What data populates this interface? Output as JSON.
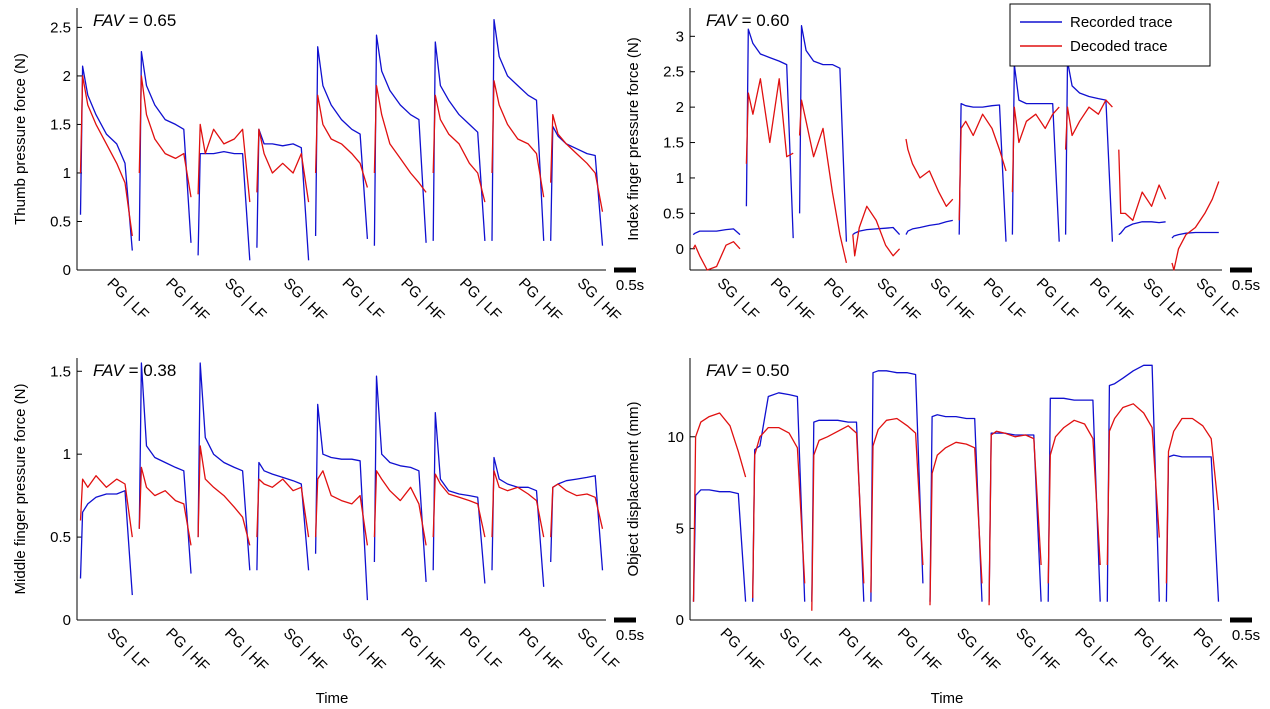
{
  "figure": {
    "xlabel": "Time",
    "scale_bar_label": "0.5s",
    "legend": {
      "placement": "top-right",
      "entries": [
        {
          "label": "Recorded trace",
          "color": "#1010d0"
        },
        {
          "label": "Decoded trace",
          "color": "#e01010"
        }
      ]
    }
  },
  "chart_data": [
    {
      "type": "line",
      "fav_label": "FAV",
      "fav_value": "= 0.65",
      "ylabel": "Thumb pressure force (N)",
      "ylim": [
        0,
        2.7
      ],
      "yticks": [
        0,
        0.5,
        1,
        1.5,
        2,
        2.5
      ],
      "yticklabels": [
        "0",
        "0.5",
        "1",
        "1.5",
        "2",
        "2.5"
      ],
      "trial_labels": [
        "PG | LF",
        "PG | HF",
        "SG | LF",
        "SG | HF",
        "PG | LF",
        "PG | HF",
        "PG | LF",
        "PG | HF",
        "SG | HF"
      ],
      "series": [
        {
          "name": "Recorded trace",
          "color": "#1010d0",
          "trials": [
            [
              0.57,
              2.1,
              1.8,
              1.6,
              1.4,
              1.3,
              1.1,
              0.2
            ],
            [
              0.3,
              2.25,
              1.9,
              1.7,
              1.55,
              1.5,
              1.45,
              0.28
            ],
            [
              0.15,
              1.2,
              1.2,
              1.2,
              1.22,
              1.2,
              1.2,
              0.1
            ],
            [
              0.23,
              1.45,
              1.3,
              1.3,
              1.28,
              1.3,
              1.26,
              0.1
            ],
            [
              0.35,
              2.3,
              1.9,
              1.7,
              1.55,
              1.45,
              1.4,
              0.32
            ],
            [
              0.25,
              2.42,
              2.05,
              1.85,
              1.7,
              1.6,
              1.55,
              0.28
            ],
            [
              0.3,
              2.35,
              1.9,
              1.75,
              1.6,
              1.5,
              1.42,
              0.3
            ],
            [
              0.3,
              2.58,
              2.2,
              2.0,
              1.9,
              1.8,
              1.75,
              0.3
            ],
            [
              0.3,
              1.48,
              1.38,
              1.3,
              1.25,
              1.2,
              1.18,
              0.25
            ]
          ]
        },
        {
          "name": "Decoded trace",
          "color": "#e01010",
          "trials": [
            [
              1.0,
              2.0,
              1.7,
              1.5,
              1.3,
              1.1,
              0.9,
              0.35
            ],
            [
              1.0,
              2.0,
              1.6,
              1.35,
              1.2,
              1.15,
              1.2,
              0.75
            ],
            [
              0.78,
              1.5,
              1.2,
              1.45,
              1.3,
              1.35,
              1.45,
              0.7
            ],
            [
              0.8,
              1.45,
              1.2,
              1.0,
              1.1,
              1.0,
              1.2,
              0.7
            ],
            [
              1.0,
              1.8,
              1.5,
              1.35,
              1.3,
              1.2,
              1.1,
              0.85
            ],
            [
              1.0,
              1.9,
              1.6,
              1.3,
              1.15,
              1.0,
              0.9,
              0.8
            ],
            [
              1.0,
              1.8,
              1.55,
              1.4,
              1.3,
              1.1,
              1.0,
              0.7
            ],
            [
              1.0,
              1.95,
              1.7,
              1.5,
              1.35,
              1.3,
              1.2,
              0.75
            ],
            [
              0.9,
              1.6,
              1.4,
              1.3,
              1.2,
              1.1,
              1.0,
              0.6
            ]
          ]
        }
      ]
    },
    {
      "type": "line",
      "fav_label": "FAV",
      "fav_value": "= 0.60",
      "ylabel": "Index finger pressure force (N)",
      "ylim": [
        -0.3,
        3.4
      ],
      "yticks": [
        0,
        0.5,
        1,
        1.5,
        2,
        2.5,
        3
      ],
      "yticklabels": [
        "0",
        "0.5",
        "1",
        "1.5",
        "2",
        "2.5",
        "3"
      ],
      "trial_labels": [
        "SG | LF",
        "PG | HF",
        "PG | HF",
        "SG | HF",
        "SG | HF",
        "PG | LF",
        "PG | LF",
        "PG | HF",
        "SG | LF",
        "SG | LF"
      ],
      "series": [
        {
          "name": "Recorded trace",
          "color": "#1010d0",
          "trials": [
            [
              0.2,
              0.22,
              0.25,
              0.25,
              0.25,
              0.27,
              0.28,
              0.2
            ],
            [
              0.6,
              3.1,
              2.9,
              2.75,
              2.7,
              2.65,
              2.6,
              0.15
            ],
            [
              0.5,
              3.15,
              2.8,
              2.65,
              2.6,
              2.6,
              2.55,
              0.1
            ],
            [
              0.2,
              0.22,
              0.25,
              0.27,
              0.28,
              0.29,
              0.3,
              0.2
            ],
            [
              0.2,
              0.25,
              0.28,
              0.3,
              0.33,
              0.35,
              0.38,
              0.4
            ],
            [
              0.2,
              2.05,
              2.02,
              2.0,
              2.0,
              2.02,
              2.03,
              0.1
            ],
            [
              0.2,
              2.6,
              2.1,
              2.05,
              2.05,
              2.05,
              2.05,
              0.1
            ],
            [
              0.2,
              2.65,
              2.3,
              2.2,
              2.15,
              2.12,
              2.1,
              0.1
            ],
            [
              0.2,
              0.22,
              0.3,
              0.35,
              0.38,
              0.38,
              0.37,
              0.38
            ],
            [
              0.15,
              0.18,
              0.2,
              0.22,
              0.23,
              0.23,
              0.23,
              0.23
            ]
          ]
        },
        {
          "name": "Decoded trace",
          "color": "#e01010",
          "trials": [
            [
              0.0,
              0.05,
              -0.1,
              -0.3,
              -0.25,
              0.05,
              0.1,
              0.0
            ],
            [
              1.2,
              2.2,
              1.9,
              2.4,
              1.5,
              2.4,
              1.3,
              1.35
            ],
            [
              1.6,
              2.1,
              1.8,
              1.3,
              1.7,
              0.8,
              0.2,
              -0.2
            ],
            [
              0.2,
              -0.1,
              0.3,
              0.6,
              0.4,
              0.05,
              -0.1,
              0.0
            ],
            [
              1.55,
              1.4,
              1.2,
              1.0,
              1.1,
              0.8,
              0.6,
              0.7
            ],
            [
              0.4,
              1.7,
              1.8,
              1.6,
              1.9,
              1.7,
              1.4,
              1.1
            ],
            [
              0.8,
              2.0,
              1.5,
              1.8,
              1.9,
              1.7,
              1.9,
              2.0
            ],
            [
              1.4,
              2.0,
              1.6,
              1.8,
              2.0,
              1.9,
              2.1,
              2.0
            ],
            [
              1.4,
              0.5,
              0.5,
              0.4,
              0.8,
              0.6,
              0.9,
              0.7
            ],
            [
              -0.2,
              -0.3,
              0.0,
              0.2,
              0.3,
              0.5,
              0.7,
              0.95
            ]
          ]
        }
      ]
    },
    {
      "type": "line",
      "fav_label": "FAV",
      "fav_value": "= 0.38",
      "ylabel": "Middle finger pressure force (N)",
      "ylim": [
        0,
        1.58
      ],
      "yticks": [
        0,
        0.5,
        1,
        1.5
      ],
      "yticklabels": [
        "0",
        "0.5",
        "1",
        "1.5"
      ],
      "trial_labels": [
        "SG | LF",
        "PG | HF",
        "PG | HF",
        "SG | HF",
        "SG | HF",
        "PG | HF",
        "PG | LF",
        "PG | HF",
        "SG | LF"
      ],
      "series": [
        {
          "name": "Recorded trace",
          "color": "#1010d0",
          "trials": [
            [
              0.25,
              0.65,
              0.7,
              0.74,
              0.76,
              0.76,
              0.78,
              0.15
            ],
            [
              0.55,
              1.55,
              1.05,
              0.98,
              0.95,
              0.92,
              0.9,
              0.28
            ],
            [
              0.5,
              1.55,
              1.1,
              1.0,
              0.95,
              0.92,
              0.9,
              0.3
            ],
            [
              0.3,
              0.95,
              0.9,
              0.88,
              0.86,
              0.84,
              0.82,
              0.3
            ],
            [
              0.4,
              1.3,
              1.0,
              0.98,
              0.97,
              0.97,
              0.96,
              0.12
            ],
            [
              0.35,
              1.47,
              1.0,
              0.95,
              0.93,
              0.92,
              0.9,
              0.23
            ],
            [
              0.3,
              1.25,
              0.85,
              0.78,
              0.76,
              0.75,
              0.74,
              0.22
            ],
            [
              0.3,
              0.98,
              0.85,
              0.82,
              0.8,
              0.8,
              0.78,
              0.2
            ],
            [
              0.35,
              0.8,
              0.82,
              0.84,
              0.85,
              0.86,
              0.87,
              0.3
            ]
          ]
        },
        {
          "name": "Decoded trace",
          "color": "#e01010",
          "trials": [
            [
              0.6,
              0.85,
              0.8,
              0.87,
              0.8,
              0.85,
              0.82,
              0.5
            ],
            [
              0.55,
              0.92,
              0.8,
              0.75,
              0.78,
              0.72,
              0.7,
              0.45
            ],
            [
              0.5,
              1.05,
              0.85,
              0.8,
              0.75,
              0.68,
              0.62,
              0.45
            ],
            [
              0.5,
              0.85,
              0.82,
              0.8,
              0.85,
              0.78,
              0.8,
              0.5
            ],
            [
              0.5,
              0.85,
              0.9,
              0.75,
              0.72,
              0.7,
              0.75,
              0.45
            ],
            [
              0.5,
              0.9,
              0.85,
              0.78,
              0.72,
              0.8,
              0.7,
              0.45
            ],
            [
              0.5,
              0.88,
              0.82,
              0.76,
              0.74,
              0.72,
              0.7,
              0.5
            ],
            [
              0.5,
              0.9,
              0.8,
              0.78,
              0.8,
              0.76,
              0.72,
              0.5
            ],
            [
              0.5,
              0.8,
              0.82,
              0.78,
              0.75,
              0.76,
              0.74,
              0.55
            ]
          ]
        }
      ]
    },
    {
      "type": "line",
      "fav_label": "FAV",
      "fav_value": "= 0.50",
      "ylabel": "Object displacement (mm)",
      "ylim": [
        0,
        14.3
      ],
      "yticks": [
        0,
        5,
        10
      ],
      "yticklabels": [
        "0",
        "5",
        "10"
      ],
      "trial_labels": [
        "PG | HF",
        "SG | LF",
        "PG | HF",
        "PG | HF",
        "SG | HF",
        "SG | HF",
        "PG | LF",
        "PG | HF",
        "PG | HF"
      ],
      "series": [
        {
          "name": "Recorded trace",
          "color": "#1010d0",
          "trials": [
            [
              1.0,
              6.8,
              7.1,
              7.1,
              7.0,
              7.0,
              6.9,
              1.0
            ],
            [
              1.0,
              9.3,
              9.5,
              12.2,
              12.4,
              12.3,
              12.2,
              1.0
            ],
            [
              1.0,
              10.8,
              10.9,
              10.9,
              10.9,
              10.8,
              10.8,
              1.0
            ],
            [
              1.0,
              13.5,
              13.6,
              13.6,
              13.5,
              13.5,
              13.4,
              2.0
            ],
            [
              1.0,
              11.1,
              11.2,
              11.1,
              11.1,
              11.0,
              11.0,
              1.0
            ],
            [
              1.0,
              10.2,
              10.2,
              10.2,
              10.1,
              10.1,
              10.1,
              1.0
            ],
            [
              1.0,
              12.1,
              12.1,
              12.1,
              12.0,
              12.0,
              12.0,
              1.0
            ],
            [
              1.0,
              12.8,
              12.9,
              13.2,
              13.6,
              13.9,
              13.9,
              1.0
            ],
            [
              1.0,
              8.9,
              9.0,
              8.9,
              8.9,
              8.9,
              8.9,
              1.0
            ]
          ]
        },
        {
          "name": "Decoded trace",
          "color": "#e01010",
          "trials": [
            [
              1.0,
              10.0,
              10.8,
              11.1,
              11.3,
              10.6,
              9.2,
              7.8
            ],
            [
              1.2,
              9.0,
              10.0,
              10.5,
              10.5,
              10.2,
              9.4,
              2.0
            ],
            [
              0.5,
              9.0,
              9.8,
              10.0,
              10.3,
              10.6,
              10.2,
              2.0
            ],
            [
              1.5,
              9.5,
              10.4,
              10.9,
              11.0,
              10.6,
              10.2,
              3.0
            ],
            [
              0.8,
              8.0,
              9.0,
              9.4,
              9.7,
              9.6,
              9.4,
              2.0
            ],
            [
              0.8,
              10.1,
              10.3,
              10.2,
              10.0,
              10.1,
              9.9,
              3.0
            ],
            [
              2.0,
              9.0,
              10.0,
              10.5,
              10.9,
              10.7,
              9.9,
              3.0
            ],
            [
              3.0,
              10.3,
              11.0,
              11.6,
              11.8,
              11.3,
              10.5,
              4.5
            ],
            [
              2.0,
              9.2,
              10.3,
              11.0,
              11.0,
              10.6,
              9.9,
              6.0
            ]
          ]
        }
      ]
    }
  ]
}
